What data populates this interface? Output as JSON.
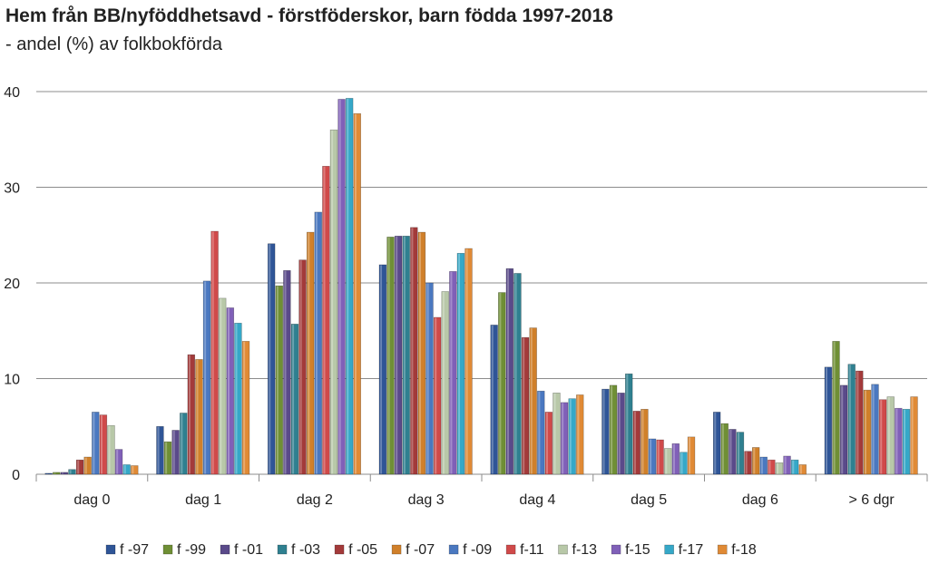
{
  "chart_data": {
    "type": "bar",
    "title": "Hem från BB/nyföddhetsavd - förstföderskor, barn födda 1997-2018",
    "subtitle": "- andel (%) av folkbokförda",
    "xlabel": "",
    "ylabel": "",
    "ylim": [
      0,
      40
    ],
    "yticks": [
      0,
      10,
      20,
      30,
      40
    ],
    "grid": true,
    "legend_position": "bottom",
    "categories": [
      "dag 0",
      "dag 1",
      "dag 2",
      "dag 3",
      "dag 4",
      "dag 5",
      "dag 6",
      "> 6 dgr"
    ],
    "series": [
      {
        "name": "f -97",
        "color": "#2f5597",
        "values": [
          0.1,
          5.0,
          24.1,
          21.9,
          15.6,
          8.9,
          6.5,
          11.2
        ]
      },
      {
        "name": "f -99",
        "color": "#6f8f35",
        "values": [
          0.2,
          3.4,
          19.7,
          24.8,
          19.0,
          9.3,
          5.3,
          13.9
        ]
      },
      {
        "name": "f -01",
        "color": "#5a4a8a",
        "values": [
          0.2,
          4.6,
          21.3,
          24.9,
          21.5,
          8.5,
          4.7,
          9.3
        ]
      },
      {
        "name": "f -03",
        "color": "#2f8090",
        "values": [
          0.5,
          6.4,
          15.7,
          24.9,
          21.0,
          10.5,
          4.4,
          11.5
        ]
      },
      {
        "name": "f -05",
        "color": "#a33a3a",
        "values": [
          1.5,
          12.5,
          22.4,
          25.8,
          14.3,
          6.6,
          2.4,
          10.8
        ]
      },
      {
        "name": "f -07",
        "color": "#d0802a",
        "values": [
          1.8,
          12.0,
          25.3,
          25.3,
          15.3,
          6.8,
          2.8,
          8.8
        ]
      },
      {
        "name": "f -09",
        "color": "#4a78c0",
        "values": [
          6.5,
          20.2,
          27.4,
          20.0,
          8.7,
          3.7,
          1.8,
          9.4
        ]
      },
      {
        "name": "f-11",
        "color": "#d04a4a",
        "values": [
          6.2,
          25.4,
          32.2,
          16.4,
          6.5,
          3.6,
          1.5,
          7.8
        ]
      },
      {
        "name": "f-13",
        "color": "#b8c8a8",
        "values": [
          5.1,
          18.4,
          36.0,
          19.1,
          8.5,
          2.7,
          1.2,
          8.1
        ]
      },
      {
        "name": "f-15",
        "color": "#8060b8",
        "values": [
          2.6,
          17.4,
          39.2,
          21.2,
          7.5,
          3.2,
          1.9,
          6.9
        ]
      },
      {
        "name": "f-17",
        "color": "#35a8c8",
        "values": [
          1.0,
          15.8,
          39.3,
          23.1,
          7.9,
          2.3,
          1.5,
          6.8
        ]
      },
      {
        "name": "f-18",
        "color": "#e08a35",
        "values": [
          0.9,
          13.9,
          37.7,
          23.6,
          8.3,
          3.9,
          1.0,
          8.1
        ]
      }
    ]
  }
}
